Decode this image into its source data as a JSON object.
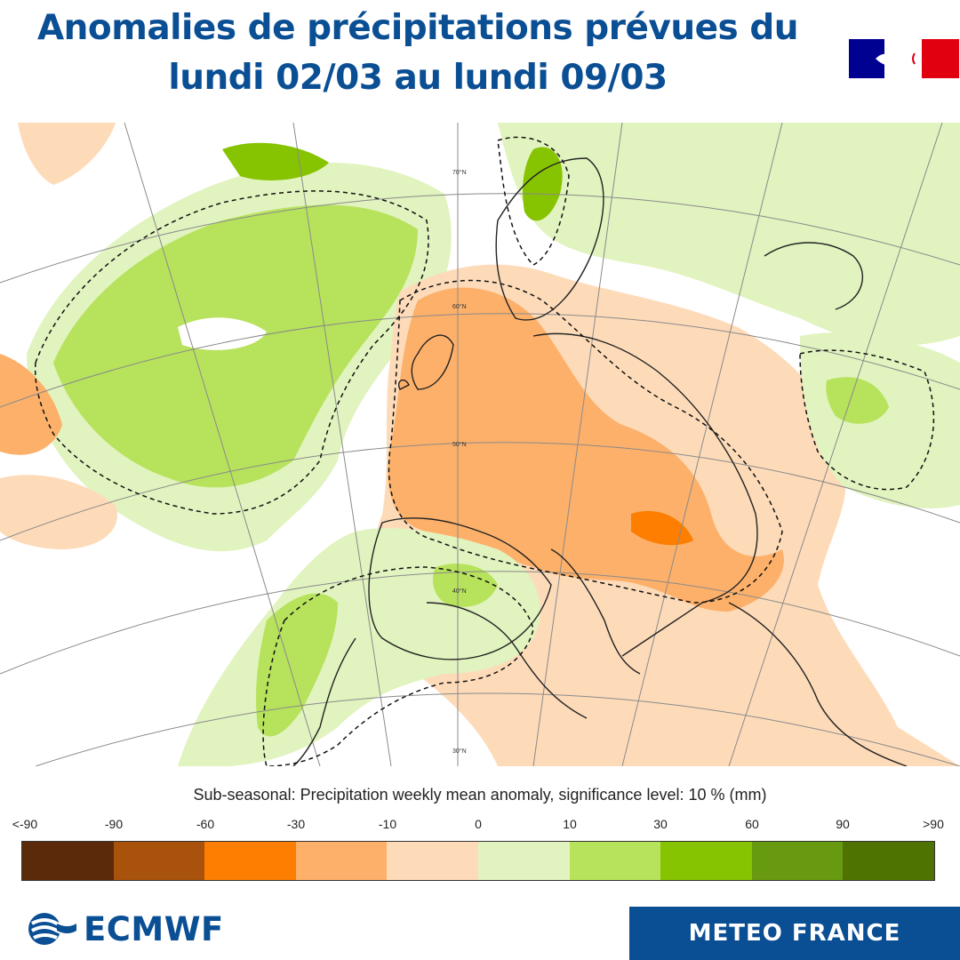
{
  "title": {
    "line1": "Anomalies de précipitations prévues du",
    "line2": "lundi 02/03 au lundi 09/03"
  },
  "map_caption": "Sub-seasonal: Precipitation weekly mean anomaly, significance level: 10 % (mm)",
  "legend": {
    "tick_labels": [
      "<-90",
      "-90",
      "-60",
      "-30",
      "-10",
      "0",
      "10",
      "30",
      "60",
      "90",
      ">90"
    ],
    "colors": [
      "#5b2a0a",
      "#a8520b",
      "#fd7e00",
      "#fdb06a",
      "#fddbb9",
      "#e1f3bf",
      "#b7e25c",
      "#86c300",
      "#679a10",
      "#4f7300"
    ]
  },
  "map": {
    "lat_labels": [
      "70°N",
      "60°N",
      "50°N",
      "40°N",
      "30°N"
    ],
    "colors": {
      "sea": "#ffffff",
      "coast": "#222222",
      "grid": "#8a8a8a"
    }
  },
  "logos": {
    "ecmwf": "ECMWF",
    "meteo_france": "METEO FRANCE"
  },
  "icons": {
    "republique_francaise": "marianne-flag-icon",
    "ecmwf": "ecmwf-waves-icon"
  }
}
